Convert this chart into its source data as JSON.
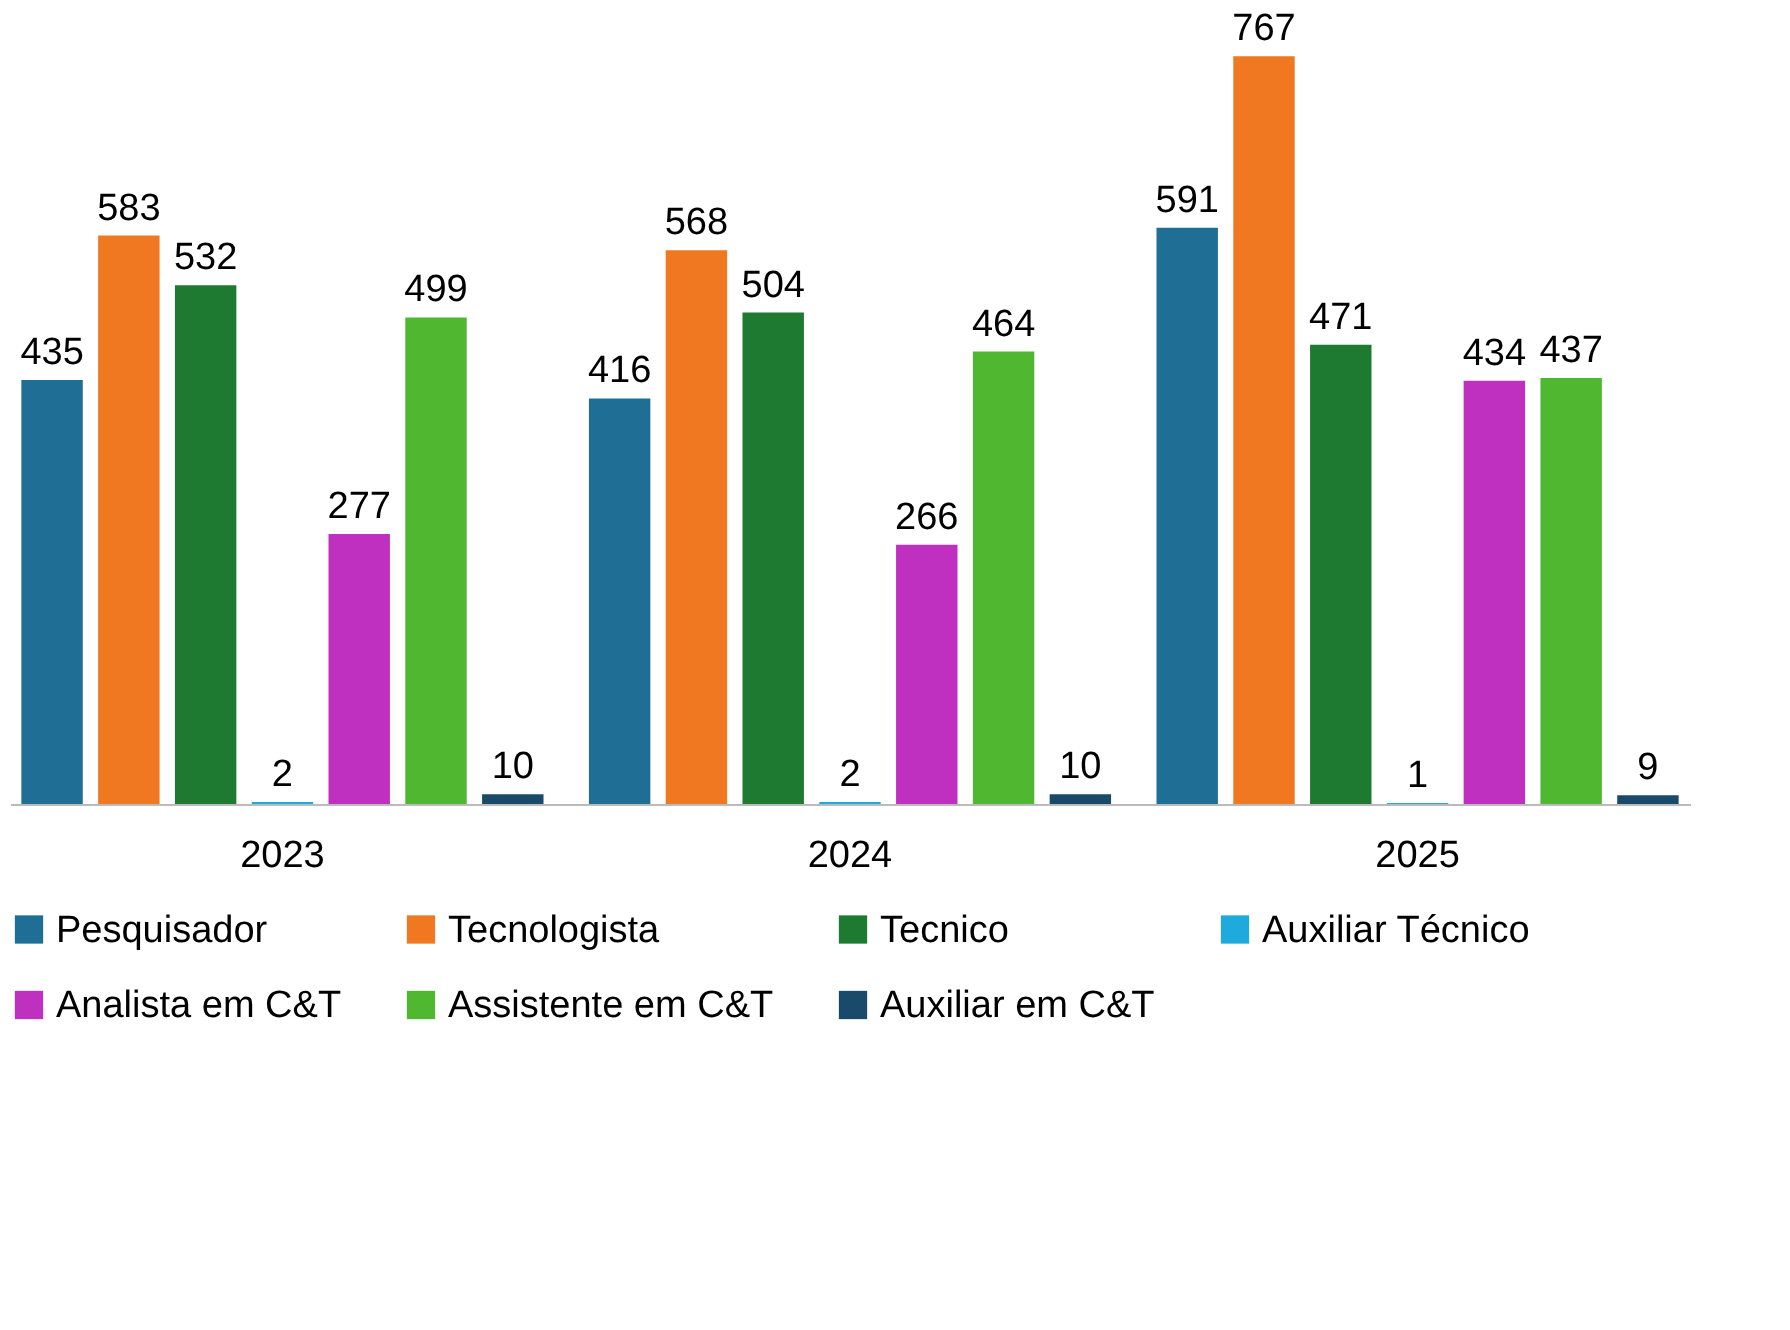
{
  "chart_data": {
    "type": "bar",
    "categories": [
      "2023",
      "2024",
      "2025"
    ],
    "series": [
      {
        "name": "Pesquisador",
        "color": "#1f6e96",
        "values": [
          435,
          416,
          591
        ]
      },
      {
        "name": "Tecnologista",
        "color": "#f07820",
        "values": [
          583,
          568,
          767
        ]
      },
      {
        "name": "Tecnico",
        "color": "#1e7a30",
        "values": [
          532,
          504,
          471
        ]
      },
      {
        "name": "Auxiliar Técnico",
        "color": "#1eaadc",
        "values": [
          2,
          2,
          1
        ]
      },
      {
        "name": "Analista em C&T",
        "color": "#c030c0",
        "values": [
          277,
          266,
          434
        ]
      },
      {
        "name": "Assistente em C&T",
        "color": "#50b830",
        "values": [
          499,
          464,
          437
        ]
      },
      {
        "name": "Auxiliar em C&T",
        "color": "#1a4a6a",
        "values": [
          10,
          10,
          9
        ]
      }
    ],
    "data_labels": true,
    "legend": "bottom",
    "grid": false
  }
}
